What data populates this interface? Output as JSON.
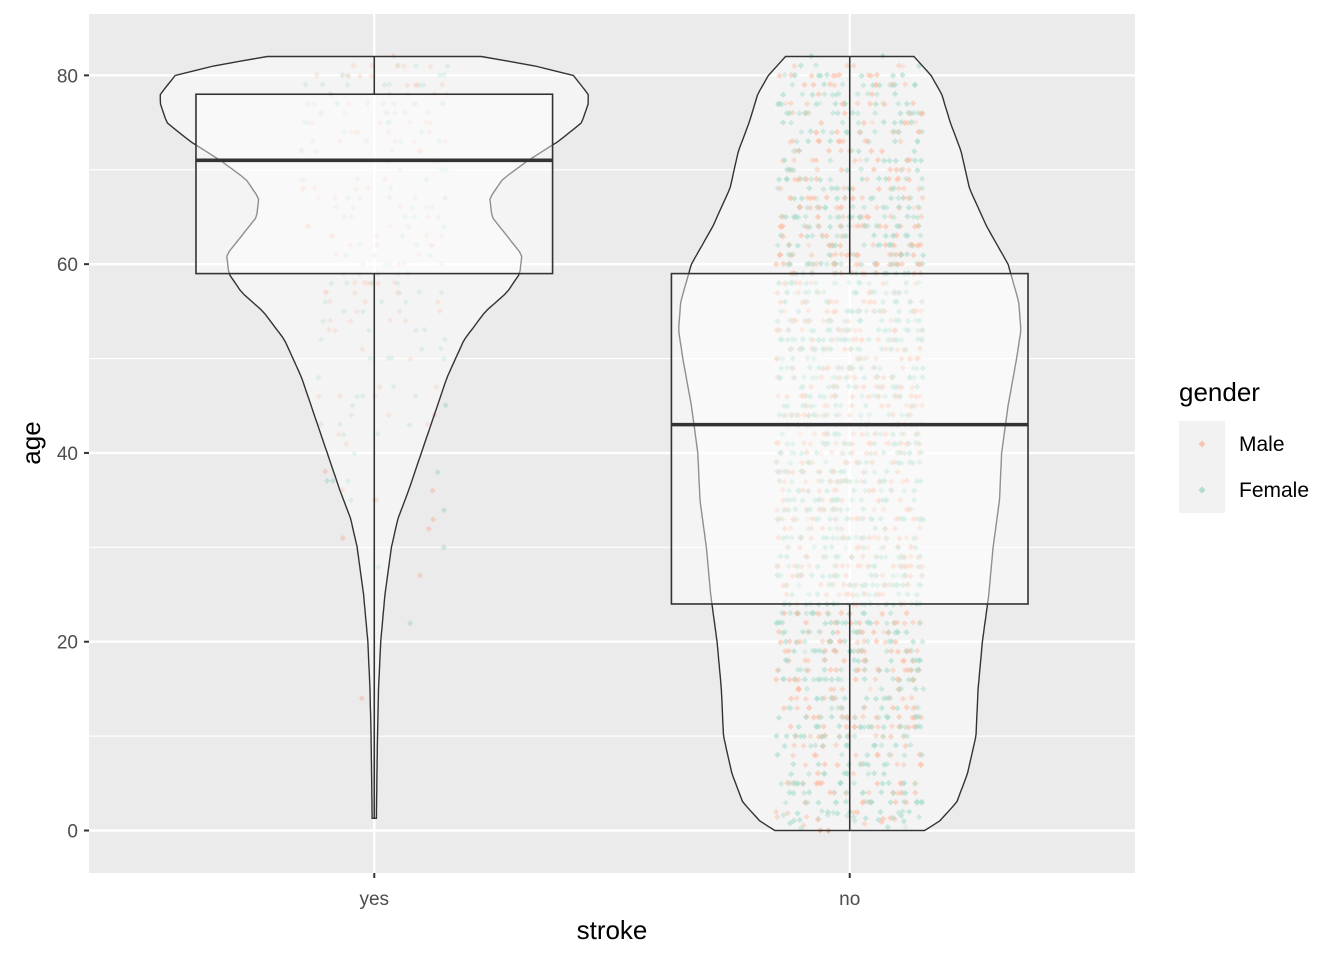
{
  "chart_data": {
    "type": "violin",
    "title": "",
    "xlabel": "stroke",
    "ylabel": "age",
    "categories": [
      "yes",
      "no"
    ],
    "ylim": [
      -4.5,
      86.5
    ],
    "yticks": [
      0,
      20,
      40,
      60,
      80
    ],
    "grid": true,
    "legend": {
      "title": "gender",
      "position": "right",
      "entries": [
        {
          "label": "Male",
          "color": "#fc8d62"
        },
        {
          "label": "Female",
          "color": "#66c2a5"
        }
      ]
    },
    "boxplots": [
      {
        "category": "yes",
        "min": 1.32,
        "q1": 59,
        "median": 71,
        "q3": 78,
        "max": 82
      },
      {
        "category": "no",
        "min": 0.08,
        "q1": 24,
        "median": 43,
        "q3": 59,
        "max": 82
      }
    ],
    "violins": [
      {
        "category": "yes",
        "age": [
          1.3,
          5,
          10,
          15,
          20,
          25,
          30,
          33,
          36,
          40,
          44,
          48,
          52,
          55,
          57,
          59,
          61,
          63,
          65,
          67,
          69,
          71,
          73,
          75,
          77,
          78,
          80,
          81,
          82
        ],
        "width": [
          0.01,
          0.012,
          0.015,
          0.02,
          0.03,
          0.05,
          0.08,
          0.11,
          0.16,
          0.22,
          0.28,
          0.34,
          0.42,
          0.52,
          0.62,
          0.68,
          0.69,
          0.62,
          0.55,
          0.54,
          0.6,
          0.72,
          0.86,
          0.97,
          1.0,
          1.0,
          0.93,
          0.75,
          0.5
        ]
      },
      {
        "category": "no",
        "age": [
          0,
          1,
          3,
          6,
          10,
          15,
          20,
          25,
          30,
          35,
          40,
          45,
          50,
          53,
          56,
          60,
          64,
          68,
          72,
          75,
          78,
          80,
          82
        ],
        "width": [
          0.35,
          0.42,
          0.5,
          0.55,
          0.59,
          0.6,
          0.62,
          0.65,
          0.67,
          0.7,
          0.71,
          0.74,
          0.78,
          0.8,
          0.79,
          0.74,
          0.64,
          0.56,
          0.52,
          0.47,
          0.43,
          0.38,
          0.3
        ]
      }
    ],
    "point_counts": {
      "yes": 249,
      "no": 4861
    }
  }
}
